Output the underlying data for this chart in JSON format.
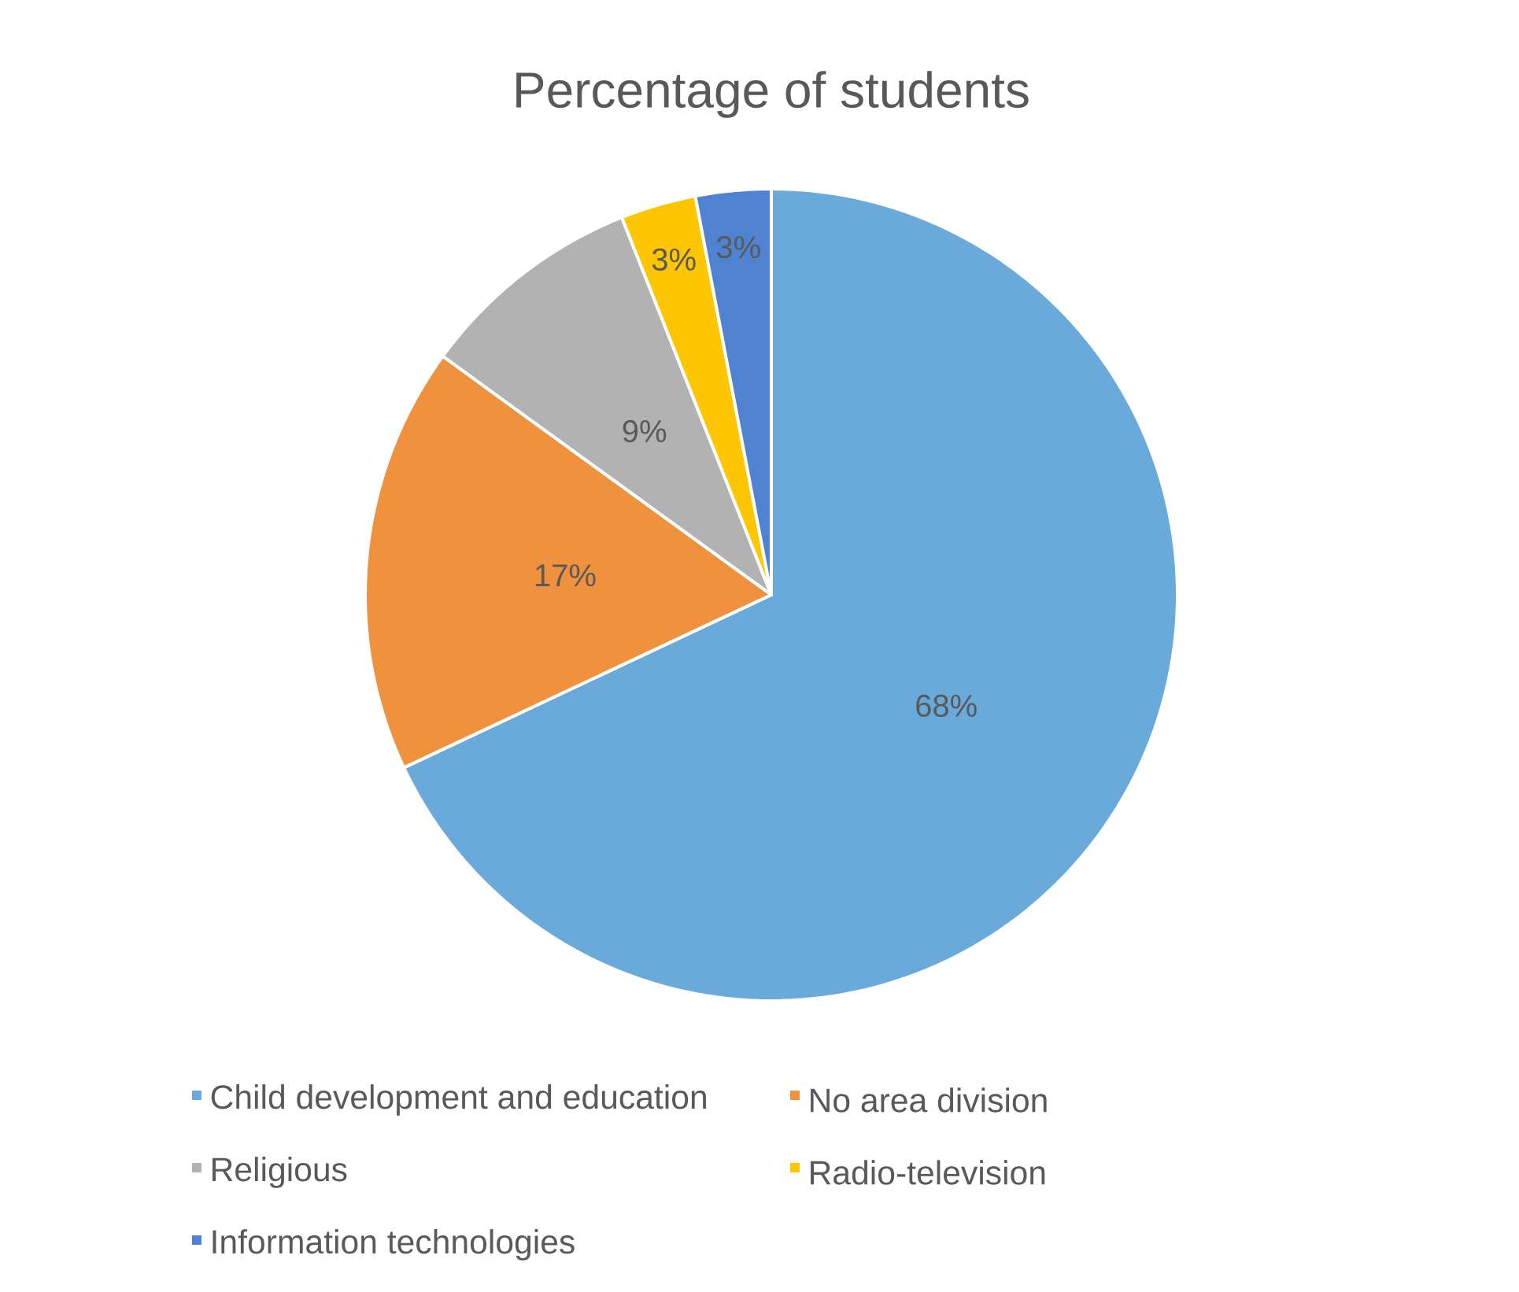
{
  "chart_data": {
    "type": "pie",
    "title": "Percentage of students",
    "categories": [
      "Child development and education",
      "No area division",
      "Religious",
      "Radio-television",
      "Information technologies"
    ],
    "values": [
      68,
      17,
      9,
      3,
      3
    ],
    "value_labels": [
      "68%",
      "17%",
      "9%",
      "3%",
      "3%"
    ],
    "colors": [
      "#6aaadb",
      "#f0913e",
      "#b2b2b2",
      "#fdc600",
      "#4f83d1"
    ],
    "legend": "bottom"
  }
}
